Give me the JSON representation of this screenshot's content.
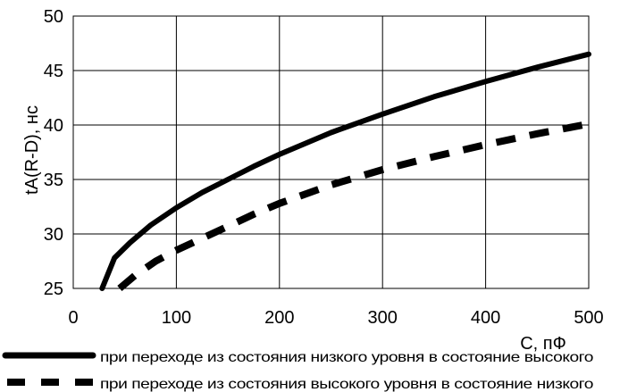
{
  "chart_data": {
    "type": "line",
    "title": "",
    "xlabel": "C, пФ",
    "ylabel": "tA(R-D), нс",
    "xlim": [
      0,
      500
    ],
    "ylim": [
      25,
      50
    ],
    "x_ticks": [
      "0",
      "100",
      "200",
      "300",
      "400",
      "500"
    ],
    "y_ticks": [
      "25",
      "30",
      "35",
      "40",
      "45",
      "50"
    ],
    "grid": true,
    "legend_position": "bottom",
    "series": [
      {
        "name": "при переходе из состояния низкого уровня в состояние высокого",
        "style": "solid",
        "color": "#000000",
        "x": [
          28,
          40,
          55,
          75,
          100,
          125,
          150,
          175,
          200,
          250,
          300,
          350,
          400,
          450,
          500
        ],
        "y": [
          25,
          27.8,
          29.2,
          30.8,
          32.4,
          33.8,
          35.0,
          36.2,
          37.3,
          39.3,
          41.0,
          42.6,
          44.0,
          45.3,
          46.5
        ]
      },
      {
        "name": "при переходе из состояния высокого уровня в состояние низкого",
        "style": "dashed",
        "color": "#000000",
        "x": [
          45,
          60,
          80,
          100,
          125,
          150,
          175,
          200,
          250,
          300,
          350,
          400,
          450,
          500
        ],
        "y": [
          25,
          26.2,
          27.5,
          28.5,
          29.6,
          30.7,
          31.8,
          32.8,
          34.5,
          35.9,
          37.1,
          38.2,
          39.2,
          40.1
        ]
      }
    ]
  }
}
